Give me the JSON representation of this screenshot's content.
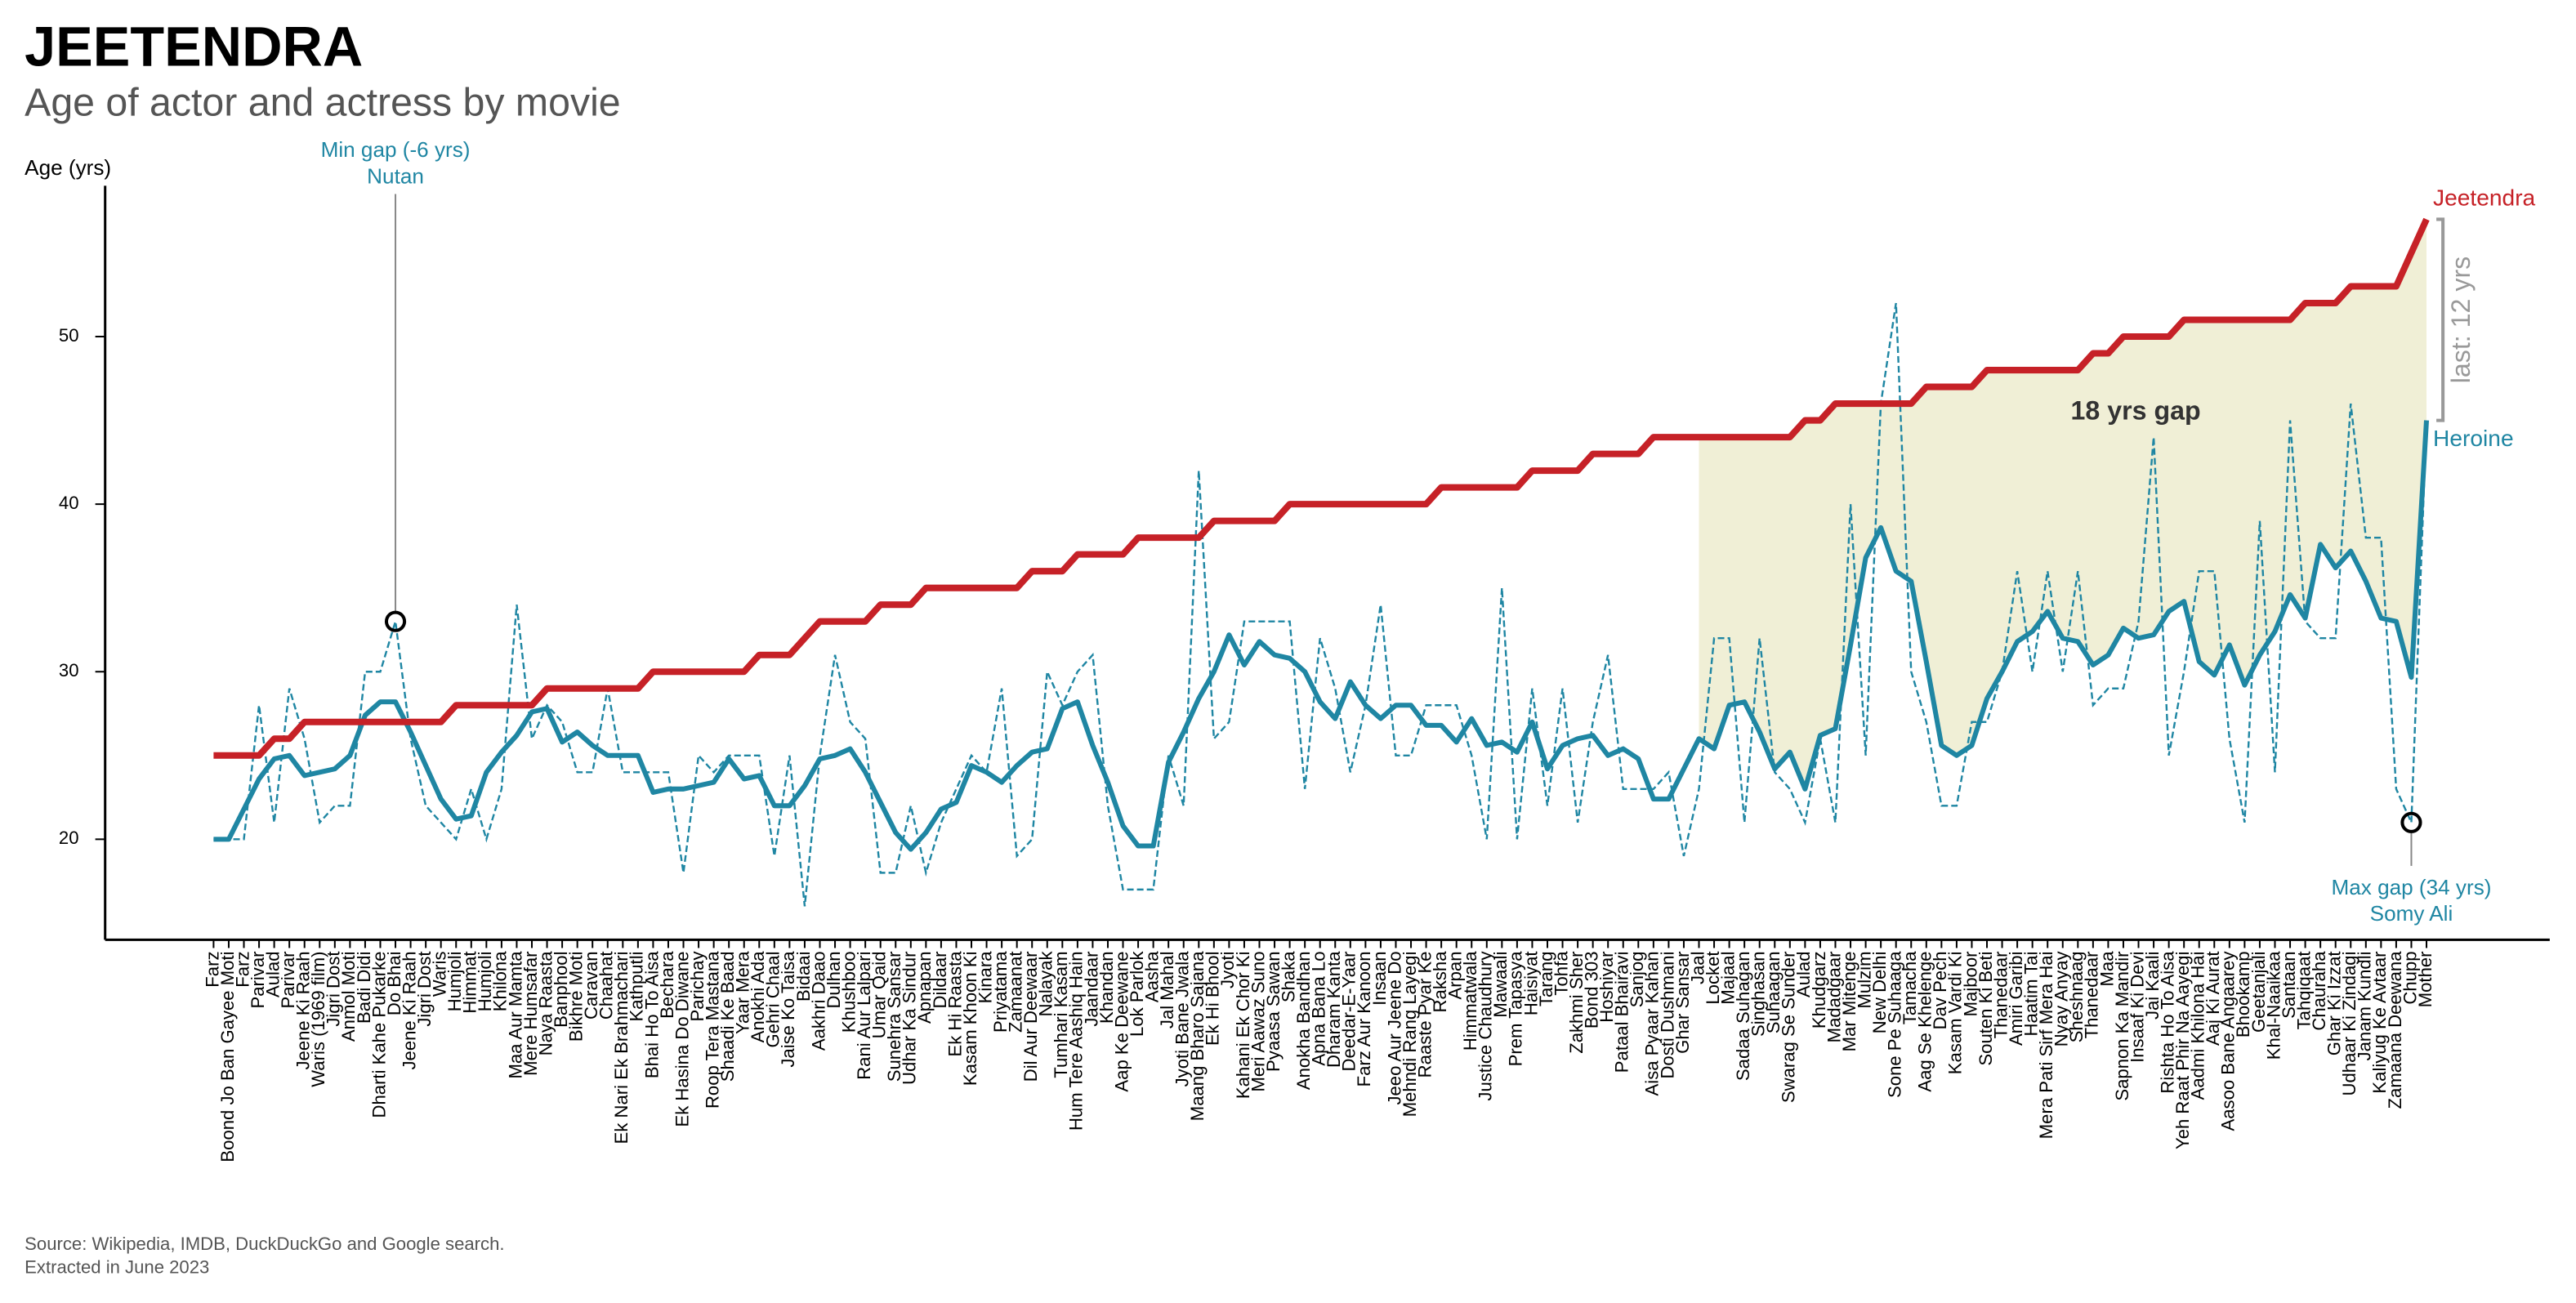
{
  "chart_data": {
    "type": "line",
    "title": "JEETENDRA",
    "subtitle": "Age of actor and actress by movie",
    "y_label": "Age (yrs)",
    "source": [
      "Source: Wikipedia, IMDB, DuckDuckGo and Google search.",
      "Extracted in June 2023"
    ],
    "categories": [
      "Farz",
      "Boond Jo Ban Gayee Moti",
      "Farz",
      "Parivar",
      "Aulad",
      "Parivar",
      "Jeene Ki Raah",
      "Waris (1969 film)",
      "Jigri Dost",
      "Anmol Moti",
      "Badi Didi",
      "Dharti Kahe Pukarke",
      "Do Bhai",
      "Jeene Ki Raah",
      "Jigri Dost",
      "Waris",
      "Humjoli",
      "Himmat",
      "Humjoli",
      "Khilona",
      "Maa Aur Mamta",
      "Mere Humsafar",
      "Naya Raasta",
      "Banphool",
      "Bikhre Moti",
      "Caravan",
      "Chaahat",
      "Ek Nari Ek Brahmachari",
      "Kathputli",
      "Bhai Ho To Aisa",
      "Bechara",
      "Ek Hasina Do Diwane",
      "Parichay",
      "Roop Tera Mastana",
      "Shaadi Ke Baad",
      "Yaar Mera",
      "Anokhi Ada",
      "Gehri Chaal",
      "Jaise Ko Taisa",
      "Bidaai",
      "Aakhri Daao",
      "Dulhan",
      "Khushboo",
      "Rani Aur Lalpari",
      "Umar Qaid",
      "Sunehra Sansar",
      "Udhar Ka Sindur",
      "Apnapan",
      "Dildaar",
      "Ek Hi Raasta",
      "Kasam Khoon Ki",
      "Kinara",
      "Priyatama",
      "Zamaanat",
      "Dil Aur Deewaar",
      "Nalayak",
      "Tumhari Kasam",
      "Hum Tere Aashiq Hain",
      "Jaandaar",
      "Khandan",
      "Aap Ke Deewane",
      "Lok Parlok",
      "Aasha",
      "Jal Mahal",
      "Jyoti Bane Jwala",
      "Maang Bharo Sajana",
      "Ek Hi Bhool",
      "Jyoti",
      "Kahani Ek Chor Ki",
      "Meri Aawaz Suno",
      "Pyaasa Sawan",
      "Shaka",
      "Anokha Bandhan",
      "Apna Bana Lo",
      "Dharam Kanta",
      "Deedar-E-Yaar",
      "Farz Aur Kanoon",
      "Insaan",
      "Jeeo Aur Jeene Do",
      "Mehndi Rang Layegi",
      "Raaste Pyar Ke",
      "Raksha",
      "Arpan",
      "Himmatwala",
      "Justice Chaudhury",
      "Mawaali",
      "Prem Tapasya",
      "Haisiyat",
      "Tarang",
      "Tohfa",
      "Zakhmi Sher",
      "Bond 303",
      "Hoshiyar",
      "Pataal Bhairavi",
      "Sanjog",
      "Aisa Pyaar Kahan",
      "Dosti Dushmani",
      "Ghar Sansar",
      "Jaal",
      "Locket",
      "Majaal",
      "Sadaa Suhagan",
      "Singhasan",
      "Suhaagan",
      "Swarag Se Sunder",
      "Aulad",
      "Khudgarz",
      "Madadgaar",
      "Mar Mitenge",
      "Mulzim",
      "New Delhi",
      "Sone Pe Suhaaga",
      "Tamacha",
      "Aag Se Khelenge",
      "Dav Pech",
      "Kasam Vardi Ki",
      "Majboor",
      "Souten Ki Beti",
      "Thanedaar",
      "Amiri Garibi",
      "Haatim Tai",
      "Mera Pati Sirf Mera Hai",
      "Nyay Anyay",
      "Sheshnaag",
      "Thanedaar",
      "Maa",
      "Sapnon Ka Mandir",
      "Insaaf Ki Devi",
      "Jai Kaali",
      "Rishta Ho To Aisa",
      "Yeh Raat Phir Na Aayegi",
      "Aadmi Khilona Hai",
      "Aaj Ki Aurat",
      "Aasoo Bane Angaarey",
      "Bhookamp",
      "Geetanjali",
      "Khal-Naaikaa",
      "Santaan",
      "Tahqiqaat",
      "Chauraha",
      "Ghar Ki Izzat",
      "Udhaar Ki Zindagi",
      "Janam Kundli",
      "Kaliyug Ke Avtaar",
      "Zamaana Deewana",
      "Chupp",
      "Mother"
    ],
    "series": [
      {
        "name": "Jeetendra",
        "color": "#c62127",
        "values": [
          25,
          25,
          25,
          25,
          26,
          26,
          27,
          27,
          27,
          27,
          27,
          27,
          27,
          27,
          27,
          27,
          28,
          28,
          28,
          28,
          28,
          28,
          29,
          29,
          29,
          29,
          29,
          29,
          29,
          30,
          30,
          30,
          30,
          30,
          30,
          30,
          31,
          31,
          31,
          32,
          33,
          33,
          33,
          33,
          34,
          34,
          34,
          35,
          35,
          35,
          35,
          35,
          35,
          35,
          36,
          36,
          36,
          37,
          37,
          37,
          37,
          38,
          38,
          38,
          38,
          38,
          39,
          39,
          39,
          39,
          39,
          40,
          40,
          40,
          40,
          40,
          40,
          40,
          40,
          40,
          40,
          41,
          41,
          41,
          41,
          41,
          41,
          42,
          42,
          42,
          42,
          43,
          43,
          43,
          43,
          44,
          44,
          44,
          44,
          44,
          44,
          44,
          44,
          44,
          44,
          45,
          45,
          46,
          46,
          46,
          46,
          46,
          46,
          47,
          47,
          47,
          47,
          48,
          48,
          48,
          48,
          48,
          48,
          48,
          49,
          49,
          50,
          50,
          50,
          50,
          51,
          51,
          51,
          51,
          51,
          51,
          51,
          51,
          52,
          52,
          52,
          53,
          53,
          53,
          53,
          55,
          57
        ]
      },
      {
        "name": "Heroine",
        "color": "#1f86a3",
        "values": [
          20,
          20,
          20,
          28,
          21,
          29,
          26,
          21,
          22,
          22,
          30,
          30,
          33,
          26,
          22,
          21,
          20,
          23,
          20,
          23,
          34,
          26,
          28,
          27,
          24,
          24,
          29,
          24,
          24,
          24,
          24,
          18,
          25,
          24,
          25,
          25,
          25,
          19,
          25,
          16,
          25,
          31,
          27,
          26,
          18,
          18,
          22,
          18,
          21,
          23,
          25,
          24,
          29,
          19,
          20,
          30,
          28,
          30,
          31,
          22,
          17,
          17,
          17,
          25,
          22,
          42,
          26,
          27,
          33,
          33,
          33,
          33,
          23,
          32,
          29,
          24,
          28,
          34,
          25,
          25,
          28,
          28,
          28,
          25,
          20,
          35,
          20,
          29,
          22,
          29,
          21,
          27,
          31,
          23,
          23,
          23,
          24,
          19,
          23,
          32,
          32,
          21,
          32,
          24,
          23,
          21,
          26,
          21,
          40,
          25,
          46,
          52,
          30,
          27,
          22,
          22,
          27,
          27,
          30,
          36,
          30,
          36,
          30,
          36,
          28,
          29,
          29,
          33,
          44,
          25,
          30,
          36,
          36,
          26,
          21,
          39,
          24,
          45,
          33,
          32,
          32,
          46,
          38,
          38,
          23,
          21,
          45
        ]
      }
    ],
    "ylim": [
      14,
      59
    ],
    "yticks": [
      20,
      30,
      40,
      50
    ],
    "highlight_from": "Jaal",
    "annotations": {
      "min_gap": {
        "label": "Min gap (-6 yrs)",
        "name": "Nutan"
      },
      "max_gap": {
        "label": "Max gap (34 yrs)",
        "name": "Somy Ali"
      },
      "last_gap": "last: 12 yrs",
      "gap_label": "18 yrs gap"
    }
  }
}
